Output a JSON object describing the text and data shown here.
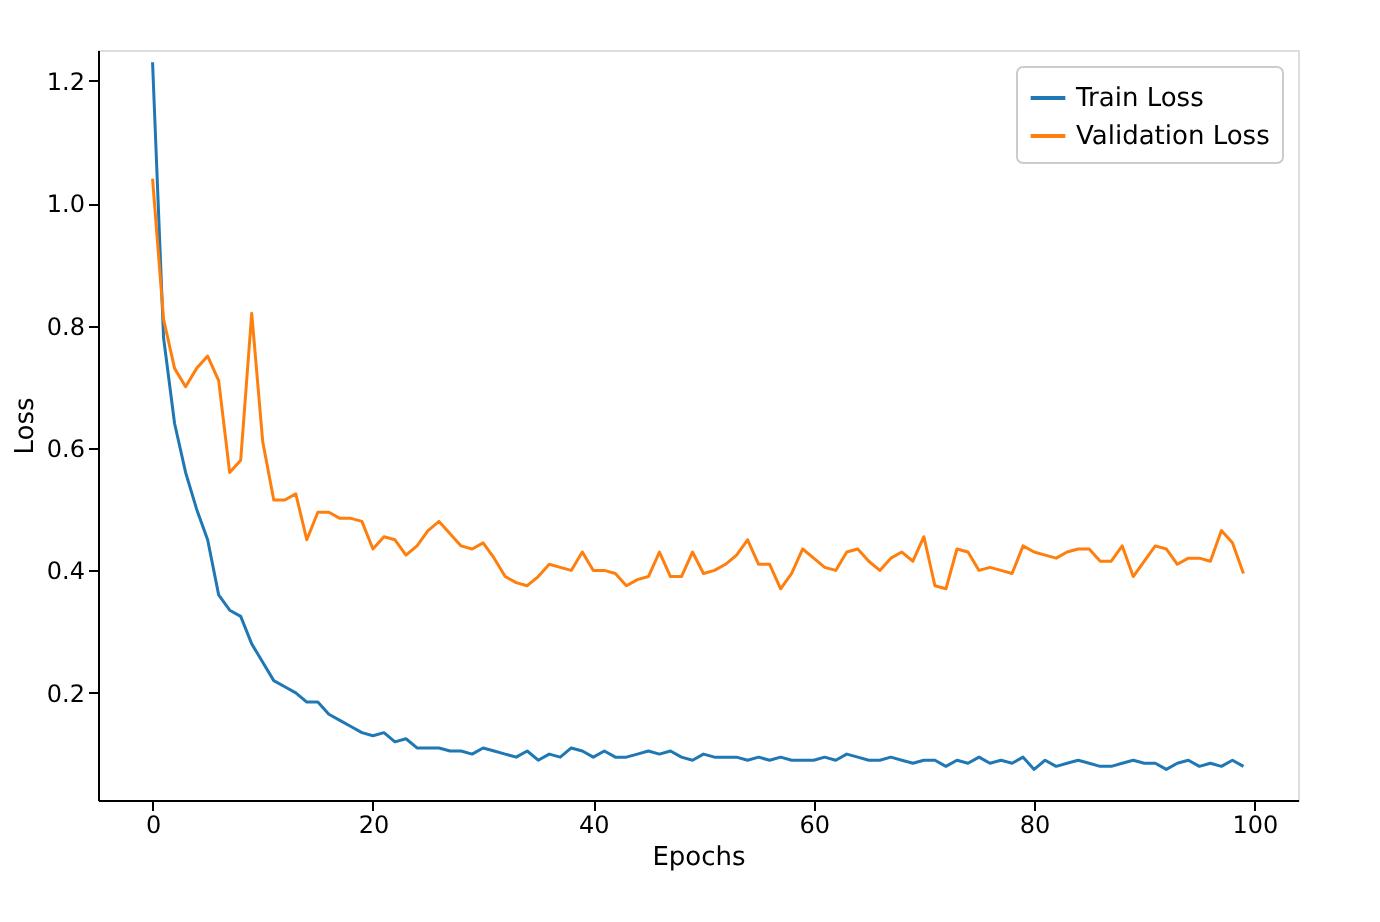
{
  "chart_data": {
    "type": "line",
    "xlabel": "Epochs",
    "ylabel": "Loss",
    "x": [
      0,
      1,
      2,
      3,
      4,
      5,
      6,
      7,
      8,
      9,
      10,
      11,
      12,
      13,
      14,
      15,
      16,
      17,
      18,
      19,
      20,
      21,
      22,
      23,
      24,
      25,
      26,
      27,
      28,
      29,
      30,
      31,
      32,
      33,
      34,
      35,
      36,
      37,
      38,
      39,
      40,
      41,
      42,
      43,
      44,
      45,
      46,
      47,
      48,
      49,
      50,
      51,
      52,
      53,
      54,
      55,
      56,
      57,
      58,
      59,
      60,
      61,
      62,
      63,
      64,
      65,
      66,
      67,
      68,
      69,
      70,
      71,
      72,
      73,
      74,
      75,
      76,
      77,
      78,
      79,
      80,
      81,
      82,
      83,
      84,
      85,
      86,
      87,
      88,
      89,
      90,
      91,
      92,
      93,
      94,
      95,
      96,
      97,
      98,
      99
    ],
    "series": [
      {
        "name": "Train Loss",
        "color": "#1f77b4",
        "values": [
          1.23,
          0.78,
          0.64,
          0.56,
          0.5,
          0.45,
          0.36,
          0.335,
          0.325,
          0.28,
          0.25,
          0.22,
          0.21,
          0.2,
          0.185,
          0.185,
          0.165,
          0.155,
          0.145,
          0.135,
          0.13,
          0.135,
          0.12,
          0.125,
          0.11,
          0.11,
          0.11,
          0.105,
          0.105,
          0.1,
          0.11,
          0.105,
          0.1,
          0.095,
          0.105,
          0.09,
          0.1,
          0.095,
          0.11,
          0.105,
          0.095,
          0.105,
          0.095,
          0.095,
          0.1,
          0.105,
          0.1,
          0.105,
          0.095,
          0.09,
          0.1,
          0.095,
          0.095,
          0.095,
          0.09,
          0.095,
          0.09,
          0.095,
          0.09,
          0.09,
          0.09,
          0.095,
          0.09,
          0.1,
          0.095,
          0.09,
          0.09,
          0.095,
          0.09,
          0.085,
          0.09,
          0.09,
          0.08,
          0.09,
          0.085,
          0.095,
          0.085,
          0.09,
          0.085,
          0.095,
          0.075,
          0.09,
          0.08,
          0.085,
          0.09,
          0.085,
          0.08,
          0.08,
          0.085,
          0.09,
          0.085,
          0.085,
          0.075,
          0.085,
          0.09,
          0.08,
          0.085,
          0.08,
          0.09,
          0.08
        ]
      },
      {
        "name": "Validation Loss",
        "color": "#ff7f0e",
        "values": [
          1.04,
          0.81,
          0.73,
          0.7,
          0.73,
          0.75,
          0.71,
          0.56,
          0.58,
          0.82,
          0.61,
          0.515,
          0.515,
          0.525,
          0.45,
          0.495,
          0.495,
          0.485,
          0.485,
          0.48,
          0.435,
          0.455,
          0.45,
          0.425,
          0.44,
          0.465,
          0.48,
          0.46,
          0.44,
          0.435,
          0.445,
          0.42,
          0.39,
          0.38,
          0.375,
          0.39,
          0.41,
          0.405,
          0.4,
          0.43,
          0.4,
          0.4,
          0.395,
          0.375,
          0.385,
          0.39,
          0.43,
          0.39,
          0.39,
          0.43,
          0.395,
          0.4,
          0.41,
          0.425,
          0.45,
          0.41,
          0.41,
          0.37,
          0.395,
          0.435,
          0.42,
          0.405,
          0.4,
          0.43,
          0.435,
          0.415,
          0.4,
          0.42,
          0.43,
          0.415,
          0.455,
          0.375,
          0.37,
          0.435,
          0.43,
          0.4,
          0.405,
          0.4,
          0.395,
          0.44,
          0.43,
          0.425,
          0.42,
          0.43,
          0.435,
          0.435,
          0.415,
          0.415,
          0.44,
          0.39,
          0.415,
          0.44,
          0.435,
          0.41,
          0.42,
          0.42,
          0.415,
          0.465,
          0.445,
          0.395
        ]
      }
    ],
    "xlim": [
      -4.95,
      103.95
    ],
    "xticks": [
      0,
      20,
      40,
      60,
      80,
      100
    ],
    "ylim": [
      0.025,
      1.25
    ],
    "yticks": [
      {
        "value": 0.2,
        "label": "0.2"
      },
      {
        "value": 0.4,
        "label": "0.4"
      },
      {
        "value": 0.6,
        "label": "0.6"
      },
      {
        "value": 0.8,
        "label": "0.8"
      },
      {
        "value": 1.0,
        "label": "1.0"
      },
      {
        "value": 1.2,
        "label": "1.2"
      }
    ],
    "grid": false,
    "legend": "top right",
    "marker": "none",
    "line_style": "solid"
  }
}
